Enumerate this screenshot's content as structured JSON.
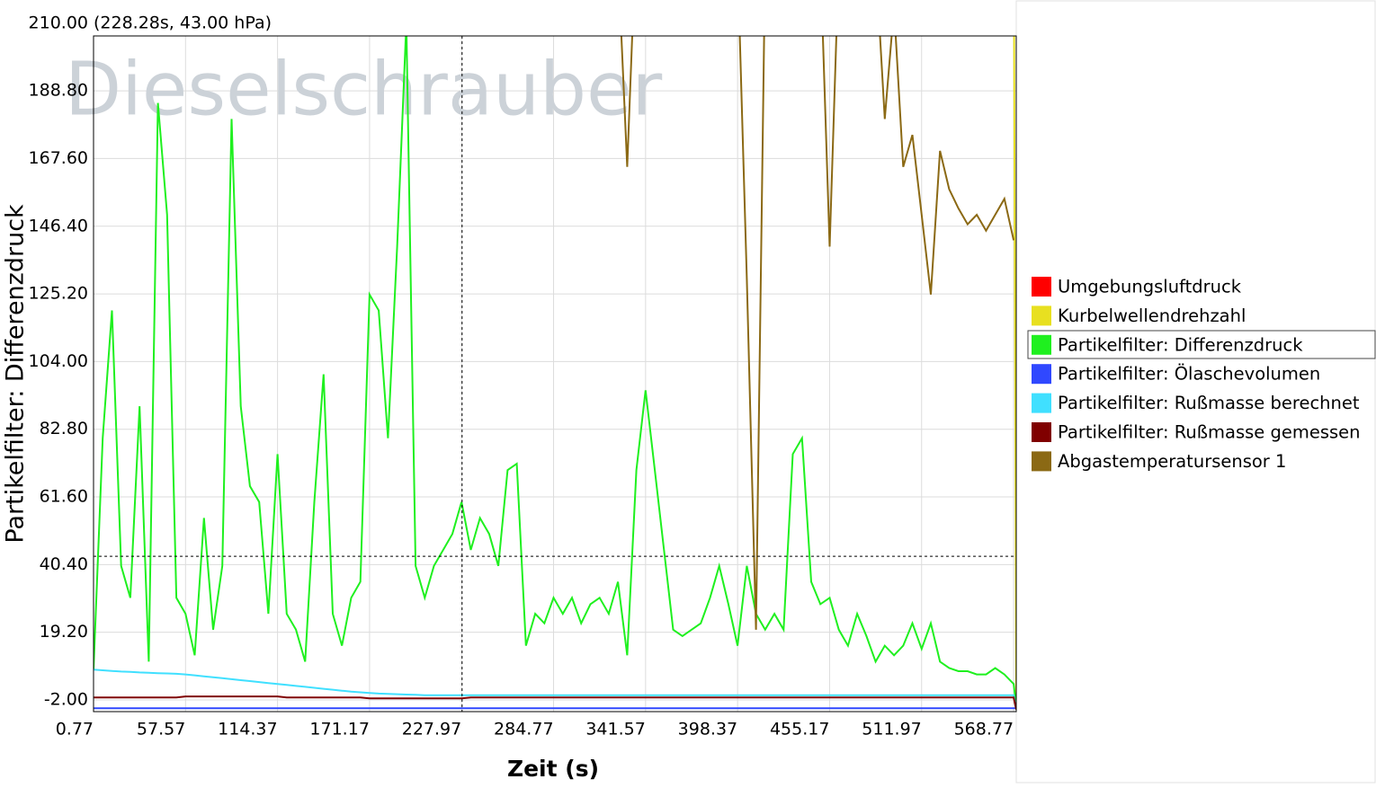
{
  "chart_data": {
    "type": "line",
    "watermark": "Dieselschrauber",
    "cursor_readout": "(228.28s, 43.00 hPa)",
    "cursor": {
      "x": 228.28,
      "y": 43
    },
    "ylabel": "Partikelfilter: Differenzdruck",
    "xlabel": "Zeit (s)",
    "xlim": [
      0.77,
      570.4
    ],
    "ylim": [
      -5.66,
      206
    ],
    "xticks": [
      0.77,
      57.57,
      114.37,
      171.17,
      227.97,
      284.77,
      341.57,
      398.37,
      455.17,
      511.97,
      568.77
    ],
    "yticks": [
      {
        "value": -2,
        "label": "-2.00"
      },
      {
        "value": 19.2,
        "label": "19.20"
      },
      {
        "value": 40.4,
        "label": "40.40"
      },
      {
        "value": 61.6,
        "label": "61.60"
      },
      {
        "value": 82.8,
        "label": "82.80"
      },
      {
        "value": 104,
        "label": "104.00"
      },
      {
        "value": 125.2,
        "label": "125.20"
      },
      {
        "value": 146.4,
        "label": "146.40"
      },
      {
        "value": 167.6,
        "label": "167.60"
      },
      {
        "value": 188.8,
        "label": "188.80"
      },
      {
        "value": 210,
        "label": "210.00"
      }
    ],
    "grid": true,
    "x": [
      0.77,
      6.45,
      12.13,
      17.81,
      23.49,
      29.17,
      34.85,
      40.53,
      46.21,
      51.89,
      57.57,
      63.25,
      68.93,
      74.61,
      80.29,
      85.97,
      91.65,
      97.33,
      103.01,
      108.69,
      114.37,
      120.05,
      125.73,
      131.41,
      137.09,
      142.77,
      148.45,
      154.13,
      159.81,
      165.49,
      171.17,
      176.85,
      182.53,
      188.21,
      193.89,
      199.57,
      205.25,
      210.93,
      216.61,
      222.29,
      227.97,
      233.65,
      239.33,
      245.01,
      250.69,
      256.37,
      262.05,
      267.73,
      273.41,
      279.09,
      284.77,
      290.45,
      296.13,
      301.81,
      307.49,
      313.17,
      318.85,
      324.53,
      330.21,
      335.89,
      341.57,
      347.25,
      352.93,
      358.61,
      364.29,
      369.97,
      375.65,
      381.33,
      387.01,
      392.69,
      398.37,
      404.05,
      409.73,
      415.41,
      421.09,
      426.77,
      432.45,
      438.13,
      443.81,
      449.49,
      455.17,
      460.85,
      466.53,
      472.21,
      477.89,
      483.57,
      489.25,
      494.93,
      500.61,
      506.29,
      511.97,
      517.65,
      523.33,
      529.01,
      534.69,
      540.37,
      546.05,
      551.73,
      557.41,
      563.09,
      568.77,
      570.4
    ],
    "series": [
      {
        "name": "Umgebungsluftdruck",
        "color": "#ff0000",
        "values": [
          null,
          null,
          null,
          null,
          null,
          null,
          null,
          null,
          null,
          null,
          null,
          null,
          null,
          null,
          null,
          null,
          null,
          null,
          null,
          null,
          null,
          null,
          null,
          null,
          null,
          null,
          null,
          null,
          null,
          null,
          null,
          null,
          null,
          null,
          null,
          null,
          null,
          null,
          null,
          null,
          null,
          null,
          null,
          null,
          null,
          null,
          null,
          null,
          null,
          null,
          null,
          null,
          null,
          null,
          null,
          null,
          null,
          null,
          null,
          null,
          null,
          null,
          null,
          null,
          null,
          null,
          null,
          null,
          null,
          null,
          null,
          null,
          null,
          null,
          null,
          null,
          null,
          null,
          null,
          null,
          null,
          null,
          null,
          null,
          null,
          null,
          null,
          null,
          null,
          null,
          null,
          null,
          null,
          null,
          null,
          null,
          null,
          null,
          null,
          null,
          null,
          null
        ]
      },
      {
        "name": "Kurbelwellendrehzahl",
        "color": "#e8e020",
        "values": [
          null,
          null,
          null,
          null,
          null,
          null,
          null,
          null,
          null,
          null,
          null,
          null,
          null,
          null,
          null,
          null,
          null,
          null,
          null,
          null,
          null,
          null,
          null,
          null,
          null,
          null,
          null,
          null,
          null,
          null,
          null,
          null,
          null,
          null,
          null,
          null,
          null,
          null,
          null,
          null,
          null,
          null,
          null,
          null,
          null,
          null,
          null,
          null,
          null,
          null,
          null,
          null,
          null,
          null,
          null,
          null,
          null,
          null,
          null,
          null,
          null,
          null,
          null,
          null,
          null,
          null,
          null,
          null,
          null,
          null,
          null,
          null,
          null,
          null,
          null,
          null,
          null,
          null,
          null,
          null,
          null,
          null,
          null,
          null,
          null,
          null,
          null,
          null,
          null,
          null,
          null,
          null,
          null,
          null,
          null,
          null,
          null,
          null,
          null,
          null,
          250,
          -5
        ]
      },
      {
        "name": "Partikelfilter: Differenzdruck",
        "color": "#1ff01f",
        "values": [
          7.6,
          80,
          120,
          40,
          30,
          90,
          10,
          185,
          150,
          30,
          25,
          12,
          55,
          20,
          40,
          180,
          90,
          65,
          60,
          25,
          75,
          25,
          20,
          10,
          60,
          100,
          25,
          15,
          30,
          35,
          125,
          120,
          80,
          140,
          210,
          40,
          30,
          40,
          45,
          50,
          60,
          45,
          55,
          50,
          40,
          70,
          72,
          15,
          25,
          22,
          30,
          25,
          30,
          22,
          28,
          30,
          25,
          35,
          12,
          70,
          95,
          70,
          45,
          20,
          18,
          20,
          22,
          30,
          40,
          28,
          15,
          40,
          25,
          20,
          25,
          20,
          75,
          80,
          35,
          28,
          30,
          20,
          15,
          25,
          18,
          10,
          15,
          12,
          15,
          22,
          14,
          22,
          10,
          8,
          7,
          7,
          6,
          6,
          8,
          6,
          3,
          -4
        ]
      },
      {
        "name": "Partikelfilter: Ölaschevolumen",
        "color": "#3048ff",
        "values": [
          -4.6,
          -4.6,
          -4.6,
          -4.6,
          -4.6,
          -4.6,
          -4.6,
          -4.6,
          -4.6,
          -4.6,
          -4.6,
          -4.6,
          -4.6,
          -4.6,
          -4.6,
          -4.6,
          -4.6,
          -4.6,
          -4.6,
          -4.6,
          -4.6,
          -4.6,
          -4.6,
          -4.6,
          -4.6,
          -4.6,
          -4.6,
          -4.6,
          -4.6,
          -4.6,
          -4.6,
          -4.6,
          -4.6,
          -4.6,
          -4.6,
          -4.6,
          -4.6,
          -4.6,
          -4.6,
          -4.6,
          -4.6,
          -4.6,
          -4.6,
          -4.6,
          -4.6,
          -4.6,
          -4.6,
          -4.6,
          -4.6,
          -4.6,
          -4.6,
          -4.6,
          -4.6,
          -4.6,
          -4.6,
          -4.6,
          -4.6,
          -4.6,
          -4.6,
          -4.6,
          -4.6,
          -4.6,
          -4.6,
          -4.6,
          -4.6,
          -4.6,
          -4.6,
          -4.6,
          -4.6,
          -4.6,
          -4.6,
          -4.6,
          -4.6,
          -4.6,
          -4.6,
          -4.6,
          -4.6,
          -4.6,
          -4.6,
          -4.6,
          -4.6,
          -4.6,
          -4.6,
          -4.6,
          -4.6,
          -4.6,
          -4.6,
          -4.6,
          -4.6,
          -4.6,
          -4.6,
          -4.6,
          -4.6,
          -4.6,
          -4.6,
          -4.6,
          -4.6,
          -4.6,
          -4.6,
          -4.6,
          -4.6,
          -4.6
        ]
      },
      {
        "name": "Partikelfilter: Rußmasse berechnet",
        "color": "#40e0ff",
        "values": [
          7.5,
          7.3,
          7.1,
          6.9,
          6.8,
          6.6,
          6.5,
          6.4,
          6.3,
          6.2,
          6.0,
          5.7,
          5.4,
          5.1,
          4.8,
          4.5,
          4.2,
          3.9,
          3.6,
          3.3,
          3.0,
          2.7,
          2.4,
          2.1,
          1.8,
          1.5,
          1.2,
          0.9,
          0.6,
          0.4,
          0.2,
          0.0,
          -0.1,
          -0.2,
          -0.3,
          -0.4,
          -0.5,
          -0.5,
          -0.5,
          -0.5,
          -0.5,
          -0.5,
          -0.5,
          -0.5,
          -0.5,
          -0.5,
          -0.5,
          -0.5,
          -0.5,
          -0.5,
          -0.5,
          -0.5,
          -0.5,
          -0.5,
          -0.5,
          -0.5,
          -0.5,
          -0.5,
          -0.5,
          -0.5,
          -0.5,
          -0.5,
          -0.5,
          -0.5,
          -0.5,
          -0.5,
          -0.5,
          -0.5,
          -0.5,
          -0.5,
          -0.5,
          -0.5,
          -0.5,
          -0.5,
          -0.5,
          -0.5,
          -0.5,
          -0.5,
          -0.5,
          -0.5,
          -0.5,
          -0.5,
          -0.5,
          -0.5,
          -0.5,
          -0.5,
          -0.5,
          -0.5,
          -0.5,
          -0.5,
          -0.5,
          -0.5,
          -0.5,
          -0.5,
          -0.5,
          -0.5,
          -0.5,
          -0.5,
          -0.5,
          -0.5,
          -0.5,
          -5
        ]
      },
      {
        "name": "Partikelfilter: Rußmasse gemessen",
        "color": "#800000",
        "values": [
          -1.2,
          -1.2,
          -1.2,
          -1.2,
          -1.2,
          -1.2,
          -1.2,
          -1.2,
          -1.2,
          -1.2,
          -0.9,
          -0.9,
          -0.9,
          -0.9,
          -0.9,
          -0.9,
          -0.9,
          -0.9,
          -0.9,
          -0.9,
          -0.9,
          -1.2,
          -1.2,
          -1.2,
          -1.2,
          -1.2,
          -1.2,
          -1.2,
          -1.2,
          -1.2,
          -1.5,
          -1.5,
          -1.5,
          -1.5,
          -1.5,
          -1.5,
          -1.5,
          -1.5,
          -1.5,
          -1.5,
          -1.5,
          -1.2,
          -1.2,
          -1.2,
          -1.2,
          -1.2,
          -1.2,
          -1.2,
          -1.2,
          -1.2,
          -1.2,
          -1.2,
          -1.2,
          -1.2,
          -1.2,
          -1.2,
          -1.2,
          -1.2,
          -1.2,
          -1.2,
          -1.2,
          -1.2,
          -1.2,
          -1.2,
          -1.2,
          -1.2,
          -1.2,
          -1.2,
          -1.2,
          -1.2,
          -1.2,
          -1.2,
          -1.2,
          -1.2,
          -1.2,
          -1.2,
          -1.2,
          -1.2,
          -1.2,
          -1.2,
          -1.2,
          -1.2,
          -1.2,
          -1.2,
          -1.2,
          -1.2,
          -1.2,
          -1.2,
          -1.2,
          -1.2,
          -1.2,
          -1.2,
          -1.2,
          -1.2,
          -1.2,
          -1.2,
          -1.2,
          -1.2,
          -1.2,
          -1.2,
          -1.2,
          -5
        ]
      },
      {
        "name": "Abgastemperatursensor 1",
        "color": "#8b6914",
        "values": [
          null,
          null,
          null,
          null,
          null,
          null,
          null,
          null,
          null,
          null,
          null,
          null,
          null,
          null,
          null,
          null,
          null,
          null,
          null,
          null,
          null,
          null,
          null,
          null,
          null,
          null,
          null,
          null,
          null,
          null,
          null,
          null,
          null,
          null,
          null,
          null,
          null,
          null,
          null,
          null,
          null,
          null,
          null,
          null,
          null,
          null,
          null,
          null,
          null,
          null,
          null,
          null,
          null,
          null,
          null,
          null,
          null,
          230,
          165,
          240,
          null,
          null,
          null,
          null,
          null,
          null,
          null,
          null,
          null,
          null,
          230,
          130,
          20,
          230,
          null,
          null,
          null,
          null,
          null,
          230,
          140,
          230,
          null,
          null,
          null,
          230,
          180,
          215,
          165,
          175,
          150,
          125,
          170,
          158,
          152,
          147,
          150,
          145,
          150,
          155,
          142,
          null
        ]
      }
    ]
  }
}
